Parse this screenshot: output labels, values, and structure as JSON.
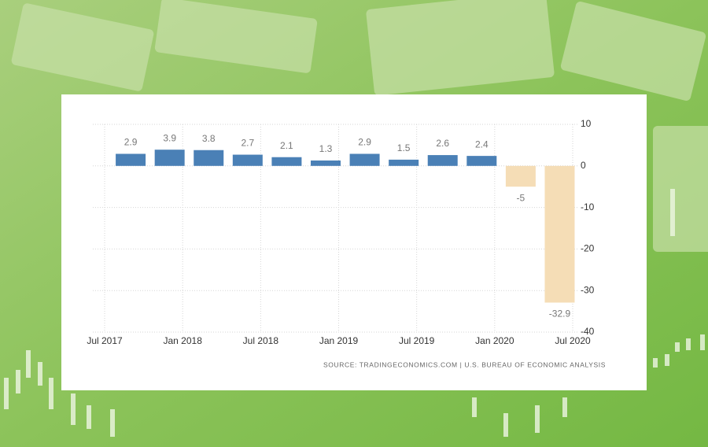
{
  "chart_data": {
    "type": "bar",
    "x": [
      "2017-09",
      "2017-12",
      "2018-03",
      "2018-06",
      "2018-09",
      "2018-12",
      "2019-03",
      "2019-06",
      "2019-09",
      "2019-12",
      "2020-03",
      "2020-06"
    ],
    "values": [
      2.9,
      3.9,
      3.8,
      2.7,
      2.1,
      1.3,
      2.9,
      1.5,
      2.6,
      2.4,
      -5,
      -32.9
    ],
    "color": "#4a80b6",
    "negative_color": "#f5ddb6",
    "xlim": [
      "2017-06",
      "2020-07"
    ],
    "xticks": [
      {
        "value": "2017-07",
        "label": "Jul 2017"
      },
      {
        "value": "2018-01",
        "label": "Jan 2018"
      },
      {
        "value": "2018-07",
        "label": "Jul 2018"
      },
      {
        "value": "2019-01",
        "label": "Jan 2019"
      },
      {
        "value": "2019-07",
        "label": "Jul 2019"
      },
      {
        "value": "2020-01",
        "label": "Jan 2020"
      },
      {
        "value": "2020-07",
        "label": "Jul 2020"
      }
    ],
    "ylim": [
      -40,
      10
    ],
    "yticks": [
      10,
      0,
      -10,
      -20,
      -30,
      -40
    ],
    "grid": true,
    "source": "SOURCE: TRADINGECONOMICS.COM | U.S. BUREAU OF ECONOMIC ANALYSIS"
  }
}
